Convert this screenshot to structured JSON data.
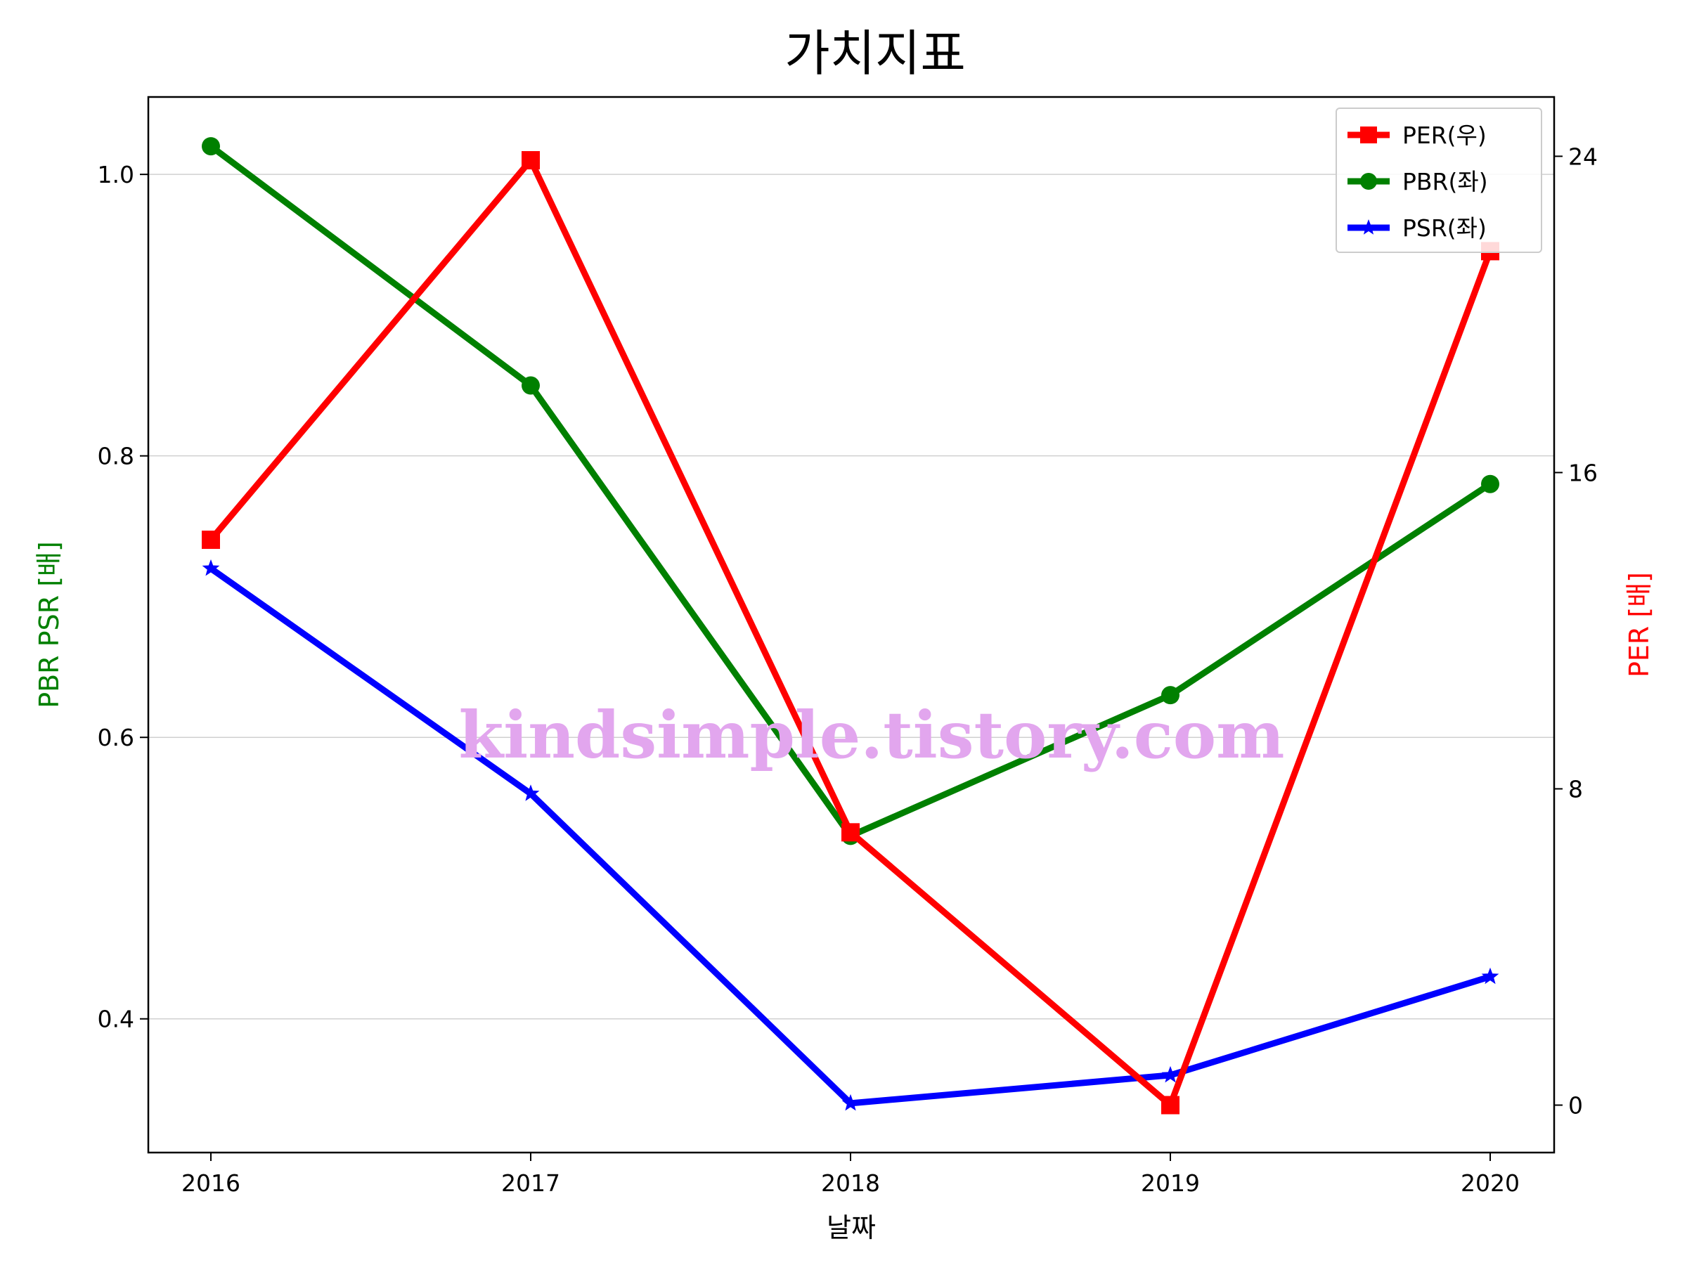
{
  "chart_data": {
    "type": "line",
    "title": "가치지표",
    "xlabel": "날짜",
    "ylabel_left": "PBR PSR [배]",
    "ylabel_right": "PER [배]",
    "categories": [
      "2016",
      "2017",
      "2018",
      "2019",
      "2020"
    ],
    "y_left": {
      "ticks": [
        "0.4",
        "0.6",
        "0.8",
        "1.0"
      ],
      "tick_values": [
        0.4,
        0.6,
        0.8,
        1.0
      ],
      "ylim": [
        0.305,
        1.055
      ]
    },
    "y_right": {
      "ticks": [
        "0",
        "8",
        "16",
        "24"
      ],
      "tick_values": [
        0,
        8,
        16,
        24
      ],
      "ylim": [
        -1.2,
        25.5
      ]
    },
    "grid": "horizontal",
    "legend_position": "top-right",
    "series": [
      {
        "name": "PER(우)",
        "axis": "right",
        "color": "#ff0000",
        "marker": "square",
        "values": [
          14.3,
          23.9,
          6.9,
          0.0,
          21.6
        ]
      },
      {
        "name": "PBR(좌)",
        "axis": "left",
        "color": "#008000",
        "marker": "circle",
        "values": [
          1.02,
          0.85,
          0.53,
          0.63,
          0.78
        ]
      },
      {
        "name": "PSR(좌)",
        "axis": "left",
        "color": "#0000ff",
        "marker": "star",
        "values": [
          0.72,
          0.56,
          0.34,
          0.36,
          0.43
        ]
      }
    ],
    "watermark": "kindsimple.tistory.com"
  }
}
